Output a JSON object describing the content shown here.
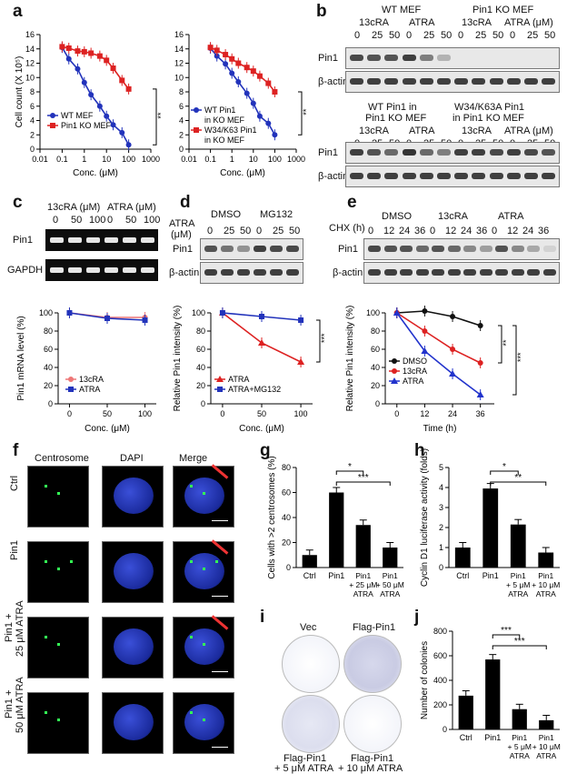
{
  "labels": {
    "a": "a",
    "b": "b",
    "c": "c",
    "d": "d",
    "e": "e",
    "f": "f",
    "g": "g",
    "h": "h",
    "i": "i",
    "j": "j"
  },
  "a1": {
    "ylabel": "Cell count (X 10⁵)",
    "xlabel": "Conc. (μM)",
    "sig": "**",
    "legend": [
      "WT MEF",
      "Pin1 KO MEF"
    ]
  },
  "a2": {
    "xlabel": "Conc. (μM)",
    "sig": "**",
    "legend": [
      "WT Pin1",
      "in KO MEF",
      "W34/K63 Pin1",
      "in KO MEF"
    ]
  },
  "b": {
    "top_groups": [
      "WT MEF",
      "Pin1 KO MEF"
    ],
    "bottom_groups": [
      "WT Pin1 in",
      "Pin1 KO MEF",
      "W34/K63A Pin1",
      "in Pin1 KO MEF"
    ],
    "treat": [
      "13cRA",
      "ATRA",
      "13cRA",
      "ATRA (μM)"
    ],
    "doses": [
      "0",
      "25",
      "50",
      "0",
      "25",
      "50",
      "0",
      "25",
      "50",
      "0",
      "25",
      "50"
    ],
    "rows": [
      "Pin1",
      "β-actin"
    ]
  },
  "c": {
    "treat": [
      "13cRA (μM)",
      "ATRA (μM)"
    ],
    "doses": [
      "0",
      "50",
      "100",
      "0",
      "50",
      "100"
    ],
    "rows": [
      "Pin1",
      "GAPDH"
    ],
    "ylabel": "Pin1 mRNA level (%)",
    "xlabel": "Conc. (μM)",
    "legend": [
      "13cRA",
      "ATRA"
    ]
  },
  "d": {
    "groups": [
      "DMSO",
      "MG132"
    ],
    "row_title": "ATRA",
    "row_unit": "(μM)",
    "doses": [
      "0",
      "25",
      "50",
      "0",
      "25",
      "50"
    ],
    "rows": [
      "Pin1",
      "β-actin"
    ],
    "ylabel": "Relative Pin1 intensity (%)",
    "xlabel": "Conc. (μM)",
    "sig": "***",
    "legend": [
      "ATRA",
      "ATRA+MG132"
    ]
  },
  "e": {
    "groups": [
      "DMSO",
      "13cRA",
      "ATRA"
    ],
    "row_title": "CHX (h)",
    "times": [
      "0",
      "12",
      "24",
      "36",
      "0",
      "12",
      "24",
      "36",
      "0",
      "12",
      "24",
      "36"
    ],
    "rows": [
      "Pin1",
      "β-actin"
    ],
    "ylabel": "Relative Pin1 intensity (%)",
    "xlabel": "Time (h)",
    "sig1": "**",
    "sig2": "***",
    "legend": [
      "DMSO",
      "13cRA",
      "ATRA"
    ]
  },
  "f": {
    "cols": [
      "Centrosome",
      "DAPI",
      "Merge"
    ],
    "rows": [
      "Ctrl",
      "Pin1",
      "Pin1 +",
      "25 μM ATRA",
      "Pin1 +",
      "50 μM ATRA"
    ]
  },
  "g": {
    "ylabel": "Cells with >2 centrosomes (%)",
    "sig": [
      "*",
      "***"
    ],
    "cats": [
      "Ctrl",
      "Pin1",
      "Pin1",
      "+ 25 μM",
      "ATRA",
      "Pin1",
      "+ 50 μM",
      "ATRA"
    ]
  },
  "h": {
    "ylabel": "Cyclin D1 luciferase activity (folds)",
    "sig": [
      "*",
      "**"
    ],
    "cats": [
      "Ctrl",
      "Pin1",
      "Pin1",
      "+ 5 μM",
      "ATRA",
      "Pin1",
      "+ 10 μM",
      "ATRA"
    ]
  },
  "i": {
    "labels": [
      "Vec",
      "Flag-Pin1",
      "Flag-Pin1",
      "+ 5 μM ATRA",
      "Flag-Pin1",
      "+ 10 μM ATRA"
    ]
  },
  "j": {
    "ylabel": "Number of colonies",
    "sig": [
      "***",
      "***"
    ],
    "cats": [
      "Ctrl",
      "Pin1",
      "Pin1",
      "+ 5 μM",
      "ATRA",
      "Pin1",
      "+ 10 μM",
      "ATRA"
    ]
  },
  "chart_data": [
    {
      "id": "a1",
      "type": "line",
      "xscale": "log",
      "xlim": [
        0.01,
        1000
      ],
      "ylim": [
        0,
        16
      ],
      "xticks": [
        "0.01",
        "0.1",
        "1",
        "10",
        "100",
        "1000"
      ],
      "yticks": [
        0,
        2,
        4,
        6,
        8,
        10,
        12,
        14,
        16
      ],
      "x": [
        0.1,
        0.2,
        0.5,
        1,
        2,
        5,
        10,
        20,
        50,
        100
      ],
      "series": [
        {
          "name": "WT MEF",
          "color": "#2233bb",
          "values": [
            14.2,
            12.6,
            11.2,
            9.3,
            7.6,
            6.0,
            4.6,
            3.4,
            2.3,
            0.6
          ]
        },
        {
          "name": "Pin1 KO MEF",
          "color": "#dd2222",
          "values": [
            14.3,
            14.1,
            13.7,
            13.6,
            13.4,
            13.0,
            12.4,
            11.3,
            9.6,
            8.4
          ]
        }
      ]
    },
    {
      "id": "a2",
      "type": "line",
      "xscale": "log",
      "xlim": [
        0.01,
        1000
      ],
      "ylim": [
        0,
        16
      ],
      "xticks": [
        "0.01",
        "0.1",
        "1",
        "10",
        "100",
        "1000"
      ],
      "yticks": [
        0,
        2,
        4,
        6,
        8,
        10,
        12,
        14,
        16
      ],
      "x": [
        0.1,
        0.2,
        0.5,
        1,
        2,
        5,
        10,
        20,
        50,
        100
      ],
      "series": [
        {
          "name": "WT Pin1 in KO MEF",
          "color": "#2233bb",
          "values": [
            14.1,
            13.0,
            11.9,
            10.6,
            9.4,
            7.8,
            6.4,
            4.6,
            3.6,
            2.0
          ]
        },
        {
          "name": "W34/K63 Pin1 in KO MEF",
          "color": "#dd2222",
          "values": [
            14.2,
            13.8,
            13.2,
            12.6,
            12.0,
            11.4,
            10.9,
            10.2,
            9.2,
            8.0
          ]
        }
      ]
    },
    {
      "id": "c",
      "type": "line",
      "x": [
        0,
        50,
        100
      ],
      "xlim": [
        -15,
        115
      ],
      "ylim": [
        0,
        100
      ],
      "xticks": [
        "0",
        "50",
        "100"
      ],
      "yticks": [
        0,
        20,
        40,
        60,
        80,
        100
      ],
      "series": [
        {
          "name": "13cRA",
          "color": "#ee7777",
          "values": [
            100,
            95,
            95
          ]
        },
        {
          "name": "ATRA",
          "color": "#2233bb",
          "values": [
            100,
            94,
            92
          ]
        }
      ]
    },
    {
      "id": "d",
      "type": "line",
      "x": [
        0,
        50,
        100
      ],
      "xlim": [
        -15,
        115
      ],
      "ylim": [
        0,
        100
      ],
      "xticks": [
        "0",
        "50",
        "100"
      ],
      "yticks": [
        0,
        20,
        40,
        60,
        80,
        100
      ],
      "series": [
        {
          "name": "ATRA",
          "color": "#dd2222",
          "values": [
            100,
            67,
            46
          ]
        },
        {
          "name": "ATRA+MG132",
          "color": "#2233bb",
          "values": [
            100,
            96,
            92
          ]
        }
      ]
    },
    {
      "id": "e",
      "type": "line",
      "x": [
        0,
        12,
        24,
        36
      ],
      "xlim": [
        -5,
        42
      ],
      "ylim": [
        0,
        100
      ],
      "xticks": [
        "0",
        "12",
        "24",
        "36"
      ],
      "yticks": [
        0,
        20,
        40,
        60,
        80,
        100
      ],
      "series": [
        {
          "name": "DMSO",
          "color": "#111111",
          "values": [
            100,
            102,
            96,
            86
          ]
        },
        {
          "name": "13cRA",
          "color": "#dd2222",
          "values": [
            100,
            80,
            60,
            45
          ]
        },
        {
          "name": "ATRA",
          "color": "#2233cc",
          "values": [
            100,
            58,
            33,
            10
          ]
        }
      ]
    },
    {
      "id": "g",
      "type": "bar",
      "ylim": [
        0,
        80
      ],
      "yticks": [
        0,
        20,
        40,
        60,
        80
      ],
      "categories": [
        "Ctrl",
        "Pin1",
        "Pin1 + 25 μM ATRA",
        "Pin1 + 50 μM ATRA"
      ],
      "values": [
        10,
        60,
        34,
        16
      ]
    },
    {
      "id": "h",
      "type": "bar",
      "ylim": [
        0,
        5
      ],
      "yticks": [
        0,
        1,
        2,
        3,
        4,
        5
      ],
      "categories": [
        "Ctrl",
        "Pin1",
        "Pin1 + 5 μM ATRA",
        "Pin1 + 10 μM ATRA"
      ],
      "values": [
        1.0,
        3.95,
        2.15,
        0.75
      ]
    },
    {
      "id": "j",
      "type": "bar",
      "ylim": [
        0,
        800
      ],
      "yticks": [
        0,
        200,
        400,
        600,
        800
      ],
      "categories": [
        "Ctrl",
        "Pin1",
        "Pin1 + 5 μM ATRA",
        "Pin1 + 10 μM ATRA"
      ],
      "values": [
        275,
        570,
        165,
        75
      ]
    }
  ]
}
